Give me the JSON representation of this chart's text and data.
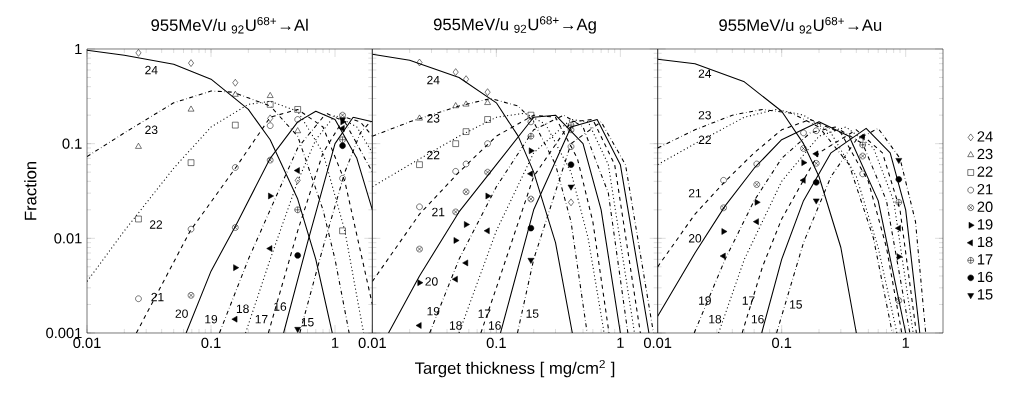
{
  "chart_data": [
    {
      "type": "line",
      "title": "955MeV/u  $_{92}$U$^{68+}$→Al",
      "ylabel": "Fraction",
      "log": "xy",
      "xlim": [
        0.01,
        2
      ],
      "ylim": [
        0.001,
        1
      ],
      "xticks": [
        0.01,
        0.1,
        1
      ],
      "yticks": [
        0.001,
        0.01,
        0.1,
        1
      ],
      "annotations": [
        "24",
        "23",
        "22",
        "21",
        "20",
        "19",
        "18",
        "17",
        "16",
        "15"
      ],
      "series": [
        {
          "line_style": "solid",
          "color": "#000000",
          "x": [
            0.01,
            0.02,
            0.05,
            0.1,
            0.2,
            0.3,
            0.5,
            0.7,
            0.95
          ],
          "values": [
            0.97,
            0.86,
            0.69,
            0.48,
            0.23,
            0.11,
            0.026,
            0.006,
            0.001
          ]
        },
        {
          "line_style": "dashdot",
          "color": "#000000",
          "x": [
            0.01,
            0.02,
            0.05,
            0.1,
            0.15,
            0.3,
            0.5,
            0.8,
            1.0,
            1.3
          ],
          "values": [
            0.073,
            0.13,
            0.27,
            0.36,
            0.35,
            0.25,
            0.12,
            0.02,
            0.006,
            0.001
          ]
        },
        {
          "line_style": "dotted",
          "color": "#000000",
          "x": [
            0.01,
            0.02,
            0.05,
            0.1,
            0.2,
            0.3,
            0.5,
            0.8,
            1.2,
            1.7
          ],
          "values": [
            0.0035,
            0.012,
            0.055,
            0.15,
            0.26,
            0.28,
            0.22,
            0.08,
            0.012,
            0.001
          ]
        },
        {
          "line_style": "dashed",
          "color": "#000000",
          "x": [
            0.025,
            0.068,
            0.16,
            0.3,
            0.5,
            0.8,
            1.2,
            2
          ],
          "values": [
            0.001,
            0.012,
            0.057,
            0.19,
            0.23,
            0.15,
            0.04,
            0.002
          ]
        },
        {
          "line_style": "solid",
          "color": "#000000",
          "x": [
            0.063,
            0.1,
            0.16,
            0.3,
            0.5,
            0.7,
            1.0,
            1.5,
            2
          ],
          "values": [
            0.001,
            0.0045,
            0.014,
            0.07,
            0.17,
            0.22,
            0.18,
            0.07,
            0.02
          ]
        },
        {
          "line_style": "dashdot",
          "color": "#000000",
          "x": [
            0.117,
            0.2,
            0.3,
            0.5,
            0.85,
            1.2,
            2
          ],
          "values": [
            0.001,
            0.006,
            0.02,
            0.09,
            0.21,
            0.17,
            0.05
          ]
        },
        {
          "line_style": "dotted",
          "color": "#000000",
          "x": [
            0.19,
            0.3,
            0.5,
            0.7,
            1.0,
            1.5,
            2
          ],
          "values": [
            0.001,
            0.006,
            0.04,
            0.11,
            0.2,
            0.15,
            0.08
          ]
        },
        {
          "line_style": "dashed",
          "color": "#000000",
          "x": [
            0.29,
            0.5,
            0.8,
            1.2,
            1.6,
            2
          ],
          "values": [
            0.001,
            0.012,
            0.08,
            0.19,
            0.17,
            0.12
          ]
        },
        {
          "line_style": "solid",
          "color": "#000000",
          "x": [
            0.385,
            0.6,
            1.0,
            1.4,
            2
          ],
          "values": [
            0.001,
            0.009,
            0.1,
            0.19,
            0.17
          ]
        },
        {
          "line_style": "dashdot",
          "color": "#000000",
          "x": [
            0.52,
            0.8,
            1.2,
            1.6,
            2
          ],
          "values": [
            0.001,
            0.008,
            0.05,
            0.13,
            0.18
          ]
        },
        {
          "type": "scatter",
          "marker": "diamond",
          "color": "#000000",
          "x": [
            0.026,
            0.069,
            0.157,
            0.3,
            0.5
          ],
          "values": [
            0.91,
            0.71,
            0.44,
            0.185,
            0.041
          ]
        },
        {
          "type": "scatter",
          "marker": "triangle",
          "color": "#000000",
          "x": [
            0.026,
            0.069,
            0.157,
            0.3,
            0.5
          ],
          "values": [
            0.093,
            0.23,
            0.33,
            0.32,
            0.136
          ]
        },
        {
          "type": "scatter",
          "marker": "square",
          "color": "#000000",
          "x": [
            0.026,
            0.069,
            0.157,
            0.3,
            0.5,
            1.15
          ],
          "values": [
            0.016,
            0.063,
            0.157,
            0.26,
            0.23,
            0.012
          ]
        },
        {
          "type": "scatter",
          "marker": "circle",
          "color": "#000000",
          "x": [
            0.026,
            0.069,
            0.157,
            0.3,
            0.5,
            1.15
          ],
          "values": [
            0.0023,
            0.0125,
            0.056,
            0.155,
            0.18,
            0.043
          ]
        },
        {
          "type": "scatter",
          "marker": "cross",
          "color": "#000000",
          "x": [
            0.069,
            0.157,
            0.3,
            1.15
          ],
          "values": [
            0.0025,
            0.013,
            0.067,
            0.2
          ]
        },
        {
          "type": "scatter",
          "marker": "triangle-right",
          "color": "#000000",
          "x": [
            0.157,
            0.3,
            1.15
          ],
          "values": [
            0.0049,
            0.028,
            0.17
          ]
        },
        {
          "type": "scatter",
          "marker": "triangle-left",
          "color": "#000000",
          "x": [
            0.157,
            0.3,
            0.5,
            1.15
          ],
          "values": [
            0.0014,
            0.0078,
            0.052,
            0.145
          ]
        },
        {
          "type": "scatter",
          "marker": "plus",
          "color": "#000000",
          "x": [
            0.5,
            1.15
          ],
          "values": [
            0.02,
            0.11
          ]
        },
        {
          "type": "scatter",
          "marker": "circle-filled",
          "color": "#000000",
          "x": [
            0.5,
            1.15
          ],
          "values": [
            0.0066,
            0.095
          ]
        },
        {
          "type": "scatter",
          "marker": "triangle-down",
          "color": "#000000",
          "x": [
            0.5,
            1.15
          ],
          "values": [
            0.0011,
            0.18
          ]
        }
      ]
    },
    {
      "type": "line",
      "title": "955MeV/u  $_{92}$U$^{68+}$→Ag",
      "xlabel": "Target thickness [ mg/cm$^{2}$ ]",
      "log": "xy",
      "tick_labels": "x",
      "xlim": [
        0.01,
        2
      ],
      "ylim": [
        0.001,
        1
      ],
      "xticks": [
        0.01,
        0.1,
        1
      ],
      "yticks": [
        0.001,
        0.01,
        0.1,
        1
      ],
      "annotations": [
        "24",
        "23",
        "22",
        "21",
        "20",
        "19",
        "18",
        "17",
        "16",
        "15"
      ],
      "series": [
        {
          "line_style": "solid",
          "color": "#000000",
          "x": [
            0.01,
            0.02,
            0.05,
            0.1,
            0.15,
            0.2,
            0.3,
            0.41
          ],
          "values": [
            0.88,
            0.76,
            0.5,
            0.27,
            0.12,
            0.05,
            0.009,
            0.001
          ]
        },
        {
          "line_style": "dashdot",
          "color": "#000000",
          "x": [
            0.01,
            0.02,
            0.05,
            0.09,
            0.15,
            0.2,
            0.3,
            0.4,
            0.54
          ],
          "values": [
            0.12,
            0.17,
            0.25,
            0.3,
            0.25,
            0.17,
            0.06,
            0.015,
            0.001
          ]
        },
        {
          "line_style": "dotted",
          "color": "#000000",
          "x": [
            0.01,
            0.02,
            0.05,
            0.1,
            0.17,
            0.25,
            0.4,
            0.55,
            0.74
          ],
          "values": [
            0.035,
            0.06,
            0.12,
            0.19,
            0.21,
            0.16,
            0.05,
            0.01,
            0.001
          ]
        },
        {
          "line_style": "dashed",
          "color": "#000000",
          "x": [
            0.01,
            0.024,
            0.05,
            0.1,
            0.2,
            0.3,
            0.45,
            0.6,
            0.81
          ],
          "values": [
            0.0035,
            0.018,
            0.05,
            0.12,
            0.2,
            0.19,
            0.07,
            0.015,
            0.001
          ]
        },
        {
          "line_style": "solid",
          "color": "#000000",
          "x": [
            0.0135,
            0.024,
            0.05,
            0.1,
            0.2,
            0.3,
            0.5,
            0.7,
            1.0
          ],
          "values": [
            0.001,
            0.004,
            0.019,
            0.06,
            0.19,
            0.2,
            0.1,
            0.02,
            0.001
          ]
        },
        {
          "line_style": "dashdot",
          "color": "#000000",
          "x": [
            0.029,
            0.05,
            0.1,
            0.2,
            0.35,
            0.5,
            0.8,
            1.15
          ],
          "values": [
            0.001,
            0.006,
            0.035,
            0.14,
            0.2,
            0.15,
            0.03,
            0.001
          ]
        },
        {
          "line_style": "dotted",
          "color": "#000000",
          "x": [
            0.05,
            0.1,
            0.2,
            0.4,
            0.55,
            0.8,
            1.3
          ],
          "values": [
            0.001,
            0.012,
            0.08,
            0.18,
            0.17,
            0.06,
            0.001
          ]
        },
        {
          "line_style": "dashed",
          "color": "#000000",
          "x": [
            0.075,
            0.1,
            0.2,
            0.4,
            0.6,
            0.9,
            1.45
          ],
          "values": [
            0.001,
            0.003,
            0.045,
            0.17,
            0.18,
            0.06,
            0.001
          ]
        },
        {
          "line_style": "solid",
          "color": "#000000",
          "x": [
            0.108,
            0.2,
            0.4,
            0.65,
            1.0,
            1.7
          ],
          "values": [
            0.001,
            0.02,
            0.15,
            0.18,
            0.06,
            0.001
          ]
        },
        {
          "line_style": "dashdot",
          "color": "#000000",
          "x": [
            0.148,
            0.2,
            0.4,
            0.7,
            1.1,
            1.85
          ],
          "values": [
            0.001,
            0.006,
            0.1,
            0.17,
            0.06,
            0.001
          ]
        },
        {
          "type": "scatter",
          "marker": "diamond",
          "color": "#000000",
          "x": [
            0.024,
            0.047,
            0.057,
            0.085,
            0.4
          ],
          "values": [
            0.72,
            0.57,
            0.48,
            0.35,
            0.024
          ]
        },
        {
          "type": "scatter",
          "marker": "triangle",
          "color": "#000000",
          "x": [
            0.024,
            0.047,
            0.057,
            0.085
          ],
          "values": [
            0.185,
            0.25,
            0.26,
            0.27
          ]
        },
        {
          "type": "scatter",
          "marker": "square",
          "color": "#000000",
          "x": [
            0.024,
            0.047,
            0.057,
            0.085,
            0.19
          ],
          "values": [
            0.06,
            0.1,
            0.134,
            0.18,
            0.2
          ]
        },
        {
          "type": "scatter",
          "marker": "circle",
          "color": "#000000",
          "x": [
            0.024,
            0.047,
            0.057,
            0.085,
            0.19,
            0.4
          ],
          "values": [
            0.0215,
            0.051,
            0.061,
            0.1,
            0.17,
            0.093
          ]
        },
        {
          "type": "scatter",
          "marker": "cross",
          "color": "#000000",
          "x": [
            0.024,
            0.047,
            0.057,
            0.085,
            0.19,
            0.4
          ],
          "values": [
            0.0077,
            0.019,
            0.031,
            0.05,
            0.026,
            0.14
          ]
        },
        {
          "type": "scatter",
          "marker": "triangle-right",
          "color": "#000000",
          "x": [
            0.024,
            0.047,
            0.057,
            0.085,
            0.19
          ],
          "values": [
            0.0034,
            0.0095,
            0.014,
            0.028,
            0.084
          ]
        },
        {
          "type": "scatter",
          "marker": "triangle-left",
          "color": "#000000",
          "x": [
            0.024,
            0.047,
            0.057,
            0.085,
            0.19
          ],
          "values": [
            0.0012,
            0.0037,
            0.0055,
            0.012,
            0.048
          ]
        },
        {
          "type": "scatter",
          "marker": "plus",
          "color": "#000000",
          "x": [
            0.19,
            0.4
          ],
          "values": [
            0.12,
            0.157
          ]
        },
        {
          "type": "scatter",
          "marker": "circle-filled",
          "color": "#000000",
          "x": [
            0.19,
            0.4
          ],
          "values": [
            0.0128,
            0.06
          ]
        },
        {
          "type": "scatter",
          "marker": "triangle-down",
          "color": "#000000",
          "x": [
            0.19,
            0.4
          ],
          "values": [
            0.0059,
            0.035
          ]
        }
      ]
    },
    {
      "type": "line",
      "title": "955MeV/u  $_{92}$U$^{68+}$→Au",
      "log": "xy",
      "tick_labels": "x",
      "legend": "right",
      "xlim": [
        0.01,
        2
      ],
      "ylim": [
        0.001,
        1
      ],
      "xticks": [
        0.01,
        0.1,
        1
      ],
      "yticks": [
        0.001,
        0.01,
        0.1,
        1
      ],
      "annotations": [
        "24",
        "23",
        "22",
        "21",
        "20",
        "19",
        "18",
        "17",
        "16",
        "15"
      ],
      "series": [
        {
          "line_style": "solid",
          "color": "#000000",
          "x": [
            0.01,
            0.02,
            0.05,
            0.1,
            0.15,
            0.2,
            0.3,
            0.4
          ],
          "values": [
            0.78,
            0.7,
            0.45,
            0.22,
            0.1,
            0.045,
            0.008,
            0.001
          ]
        },
        {
          "line_style": "dashdot",
          "color": "#000000",
          "x": [
            0.01,
            0.02,
            0.04,
            0.07,
            0.12,
            0.2,
            0.35,
            0.55,
            0.78
          ],
          "values": [
            0.09,
            0.14,
            0.2,
            0.23,
            0.21,
            0.15,
            0.06,
            0.01,
            0.001
          ]
        },
        {
          "line_style": "dotted",
          "color": "#000000",
          "x": [
            0.01,
            0.02,
            0.05,
            0.09,
            0.15,
            0.25,
            0.4,
            0.6,
            0.85
          ],
          "values": [
            0.06,
            0.1,
            0.19,
            0.23,
            0.2,
            0.13,
            0.045,
            0.008,
            0.001
          ]
        },
        {
          "line_style": "dashed",
          "color": "#000000",
          "x": [
            0.01,
            0.02,
            0.035,
            0.06,
            0.1,
            0.17,
            0.3,
            0.5,
            0.7,
            0.93
          ],
          "values": [
            0.005,
            0.018,
            0.04,
            0.08,
            0.14,
            0.18,
            0.13,
            0.04,
            0.008,
            0.001
          ]
        },
        {
          "line_style": "solid",
          "color": "#000000",
          "x": [
            0.01,
            0.02,
            0.035,
            0.06,
            0.1,
            0.2,
            0.35,
            0.6,
            1.0
          ],
          "values": [
            0.0015,
            0.007,
            0.022,
            0.055,
            0.11,
            0.17,
            0.12,
            0.025,
            0.001
          ]
        },
        {
          "line_style": "dashdot",
          "color": "#000000",
          "x": [
            0.0197,
            0.035,
            0.06,
            0.1,
            0.17,
            0.27,
            0.45,
            0.7,
            1.08
          ],
          "values": [
            0.001,
            0.006,
            0.025,
            0.07,
            0.13,
            0.15,
            0.1,
            0.025,
            0.001
          ]
        },
        {
          "line_style": "dotted",
          "color": "#000000",
          "x": [
            0.031,
            0.05,
            0.1,
            0.2,
            0.33,
            0.55,
            0.8,
            1.15
          ],
          "values": [
            0.001,
            0.006,
            0.04,
            0.12,
            0.15,
            0.09,
            0.025,
            0.001
          ]
        },
        {
          "line_style": "dashed",
          "color": "#000000",
          "x": [
            0.048,
            0.07,
            0.1,
            0.2,
            0.4,
            0.65,
            0.9,
            1.22
          ],
          "values": [
            0.001,
            0.005,
            0.016,
            0.08,
            0.14,
            0.08,
            0.02,
            0.001
          ]
        },
        {
          "line_style": "solid",
          "color": "#000000",
          "x": [
            0.069,
            0.1,
            0.15,
            0.25,
            0.48,
            0.75,
            1.0,
            1.3
          ],
          "values": [
            0.001,
            0.006,
            0.025,
            0.08,
            0.145,
            0.08,
            0.02,
            0.001
          ]
        },
        {
          "line_style": "dashdot",
          "color": "#000000",
          "x": [
            0.091,
            0.15,
            0.25,
            0.4,
            0.6,
            0.9,
            1.2,
            1.45
          ],
          "values": [
            0.001,
            0.009,
            0.045,
            0.11,
            0.145,
            0.07,
            0.015,
            0.001
          ]
        },
        {
          "type": "scatter",
          "marker": "diamond",
          "color": "#000000",
          "name": "24"
        },
        {
          "type": "scatter",
          "marker": "triangle",
          "color": "#000000",
          "name": "23"
        },
        {
          "type": "scatter",
          "marker": "square",
          "color": "#000000",
          "name": "22"
        },
        {
          "type": "scatter",
          "marker": "circle",
          "color": "#000000",
          "name": "21",
          "x": [
            0.034,
            0.063,
            0.15,
            0.19,
            0.45
          ],
          "values": [
            0.041,
            0.061,
            0.13,
            0.137,
            0.048
          ]
        },
        {
          "type": "scatter",
          "marker": "cross",
          "color": "#000000",
          "name": "20",
          "x": [
            0.034,
            0.063,
            0.15,
            0.19,
            0.45,
            0.88
          ],
          "values": [
            0.021,
            0.037,
            0.089,
            0.062,
            0.074,
            0.0022
          ]
        },
        {
          "type": "scatter",
          "marker": "triangle-right",
          "color": "#000000",
          "name": "19",
          "x": [
            0.034,
            0.063,
            0.15,
            0.88
          ],
          "values": [
            0.0118,
            0.024,
            0.063,
            0.0064
          ]
        },
        {
          "type": "scatter",
          "marker": "triangle-left",
          "color": "#000000",
          "name": "18",
          "x": [
            0.034,
            0.063,
            0.15,
            0.19,
            0.45,
            0.88
          ],
          "values": [
            0.0065,
            0.015,
            0.041,
            0.078,
            0.118,
            0.0128
          ]
        },
        {
          "type": "scatter",
          "marker": "plus",
          "color": "#000000",
          "name": "17",
          "x": [
            0.45,
            0.88
          ],
          "values": [
            0.097,
            0.024
          ]
        },
        {
          "type": "scatter",
          "marker": "circle-filled",
          "color": "#000000",
          "name": "16",
          "x": [
            0.19,
            0.88
          ],
          "values": [
            0.039,
            0.042
          ]
        },
        {
          "type": "scatter",
          "marker": "triangle-down",
          "color": "#000000",
          "name": "15",
          "x": [
            0.19,
            0.88
          ],
          "values": [
            0.025,
            0.067
          ]
        }
      ]
    }
  ]
}
